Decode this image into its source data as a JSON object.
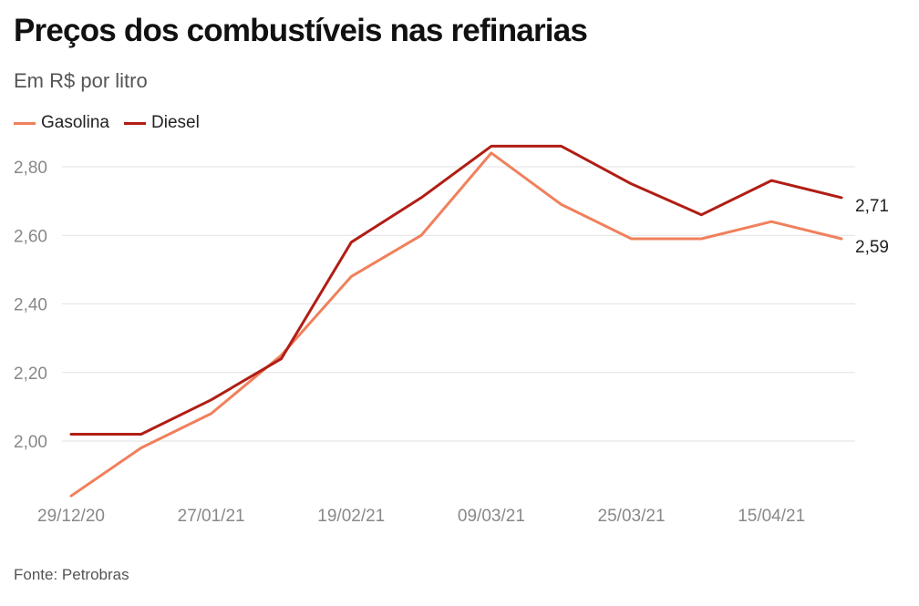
{
  "title": "Preços dos combustíveis nas refinarias",
  "subtitle": "Em R$ por litro",
  "source": "Fonte: Petrobras",
  "colors": {
    "gasolina": "#F0805C",
    "diesel": "#B01E15",
    "grid": "#E2E2E2"
  },
  "chart_data": {
    "type": "line",
    "x": [
      "29/12/20",
      "12/01/21",
      "27/01/21",
      "09/02/21",
      "19/02/21",
      "02/03/21",
      "09/03/21",
      "16/03/21",
      "25/03/21",
      "06/04/21",
      "15/04/21",
      "23/04/21"
    ],
    "x_tick_labels": [
      "29/12/20",
      "27/01/21",
      "19/02/21",
      "09/03/21",
      "25/03/21",
      "15/04/21"
    ],
    "x_tick_indices": [
      0,
      2,
      4,
      6,
      8,
      10
    ],
    "y_ticks": [
      "2,80",
      "2,60",
      "2,40",
      "2,20",
      "2,00"
    ],
    "y_tick_values": [
      2.8,
      2.6,
      2.4,
      2.2,
      2.0
    ],
    "ylim": [
      1.84,
      2.86
    ],
    "grid": true,
    "legend_position": "top-left",
    "series": [
      {
        "name": "Gasolina",
        "key": "gasolina",
        "values": [
          1.84,
          1.98,
          2.08,
          2.25,
          2.48,
          2.6,
          2.84,
          2.69,
          2.59,
          2.59,
          2.64,
          2.59
        ],
        "end_label": "2,59"
      },
      {
        "name": "Diesel",
        "key": "diesel",
        "values": [
          2.02,
          2.02,
          2.12,
          2.24,
          2.58,
          2.71,
          2.86,
          2.86,
          2.75,
          2.66,
          2.76,
          2.71
        ],
        "end_label": "2,71"
      }
    ]
  }
}
